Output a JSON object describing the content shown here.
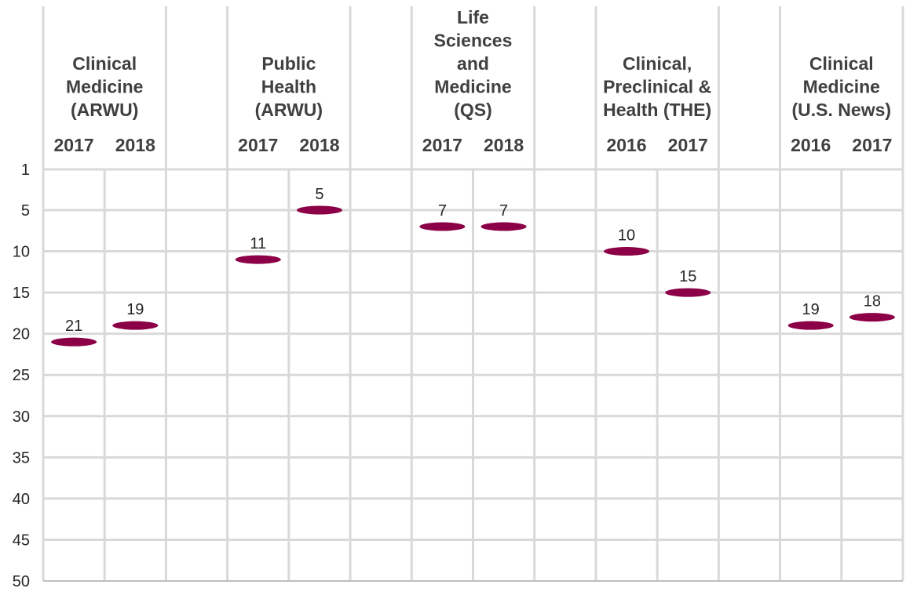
{
  "chart_data": {
    "type": "scatter",
    "y_axis": {
      "ticks": [
        1,
        5,
        10,
        15,
        20,
        25,
        30,
        35,
        40,
        45,
        50
      ],
      "range": [
        1,
        50
      ],
      "inverted": true
    },
    "grid": true,
    "marker_color": "#8b0046",
    "groups": [
      {
        "title": [
          "Clinical",
          "Medicine",
          "(ARWU)"
        ],
        "points": [
          {
            "year": "2017",
            "value": 21
          },
          {
            "year": "2018",
            "value": 19
          }
        ]
      },
      {
        "title": [
          "Public",
          "Health",
          "(ARWU)"
        ],
        "points": [
          {
            "year": "2017",
            "value": 11
          },
          {
            "year": "2018",
            "value": 5
          }
        ]
      },
      {
        "title": [
          "Life",
          "Sciences",
          "and",
          "Medicine",
          "(QS)"
        ],
        "points": [
          {
            "year": "2017",
            "value": 7
          },
          {
            "year": "2018",
            "value": 7
          }
        ]
      },
      {
        "title": [
          "Clinical,",
          "Preclinical &",
          "Health (THE)"
        ],
        "points": [
          {
            "year": "2016",
            "value": 10
          },
          {
            "year": "2017",
            "value": 15
          }
        ]
      },
      {
        "title": [
          "Clinical",
          "Medicine",
          "(U.S. News)"
        ],
        "points": [
          {
            "year": "2016",
            "value": 19
          },
          {
            "year": "2017",
            "value": 18
          }
        ]
      }
    ]
  }
}
